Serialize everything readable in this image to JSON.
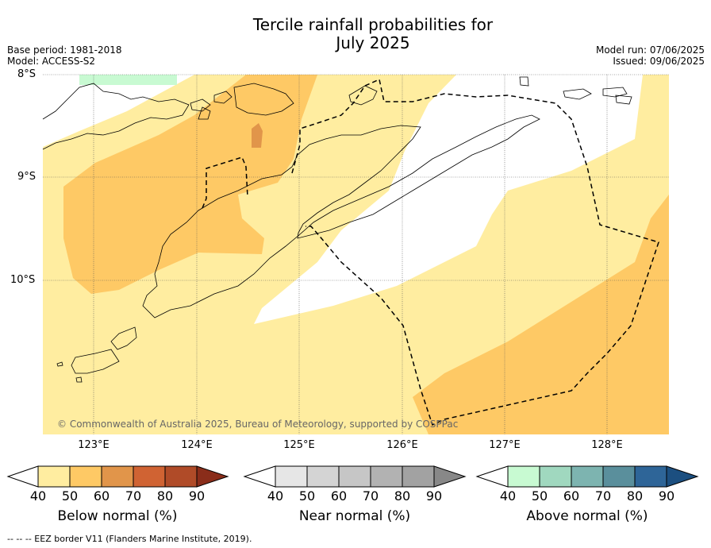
{
  "title": {
    "line1": "Tercile rainfall probabilities for",
    "line2": "July 2025"
  },
  "meta": {
    "base_period": "Base period: 1981-2018",
    "model": "Model: ACCESS-S2",
    "model_run": "Model run: 07/06/2025",
    "issued": "Issued: 09/06/2025"
  },
  "axes": {
    "lat_labels": [
      "8°S",
      "9°S",
      "10°S"
    ],
    "lon_labels": [
      "123°E",
      "124°E",
      "125°E",
      "126°E",
      "127°E",
      "128°E"
    ]
  },
  "copyright": "© Commonwealth of Australia 2025, Bureau of Meteorology, supported by COSPPac",
  "colors": {
    "below": [
      "#ffeda0",
      "#fec965",
      "#e1954a",
      "#d06333",
      "#b04b28",
      "#8a2d1a"
    ],
    "near": [
      "#e6e6e6",
      "#d4d4d4",
      "#c6c6c6",
      "#b2b2b2",
      "#a2a2a2",
      "#888888"
    ],
    "above": [
      "#c8fad2",
      "#a0d8bf",
      "#7db4b0",
      "#5a8f9c",
      "#2e6598",
      "#1c4f80"
    ]
  },
  "colorbars": [
    {
      "label": "Below normal (%)",
      "ticks": [
        "40",
        "50",
        "60",
        "70",
        "80",
        "90"
      ]
    },
    {
      "label": "Near normal (%)",
      "ticks": [
        "40",
        "50",
        "60",
        "70",
        "80",
        "90"
      ]
    },
    {
      "label": "Above normal (%)",
      "ticks": [
        "40",
        "50",
        "60",
        "70",
        "80",
        "90"
      ]
    }
  ],
  "footer": "--  --  -- EEZ border V11 (Flanders Marine Institute, 2019)."
}
